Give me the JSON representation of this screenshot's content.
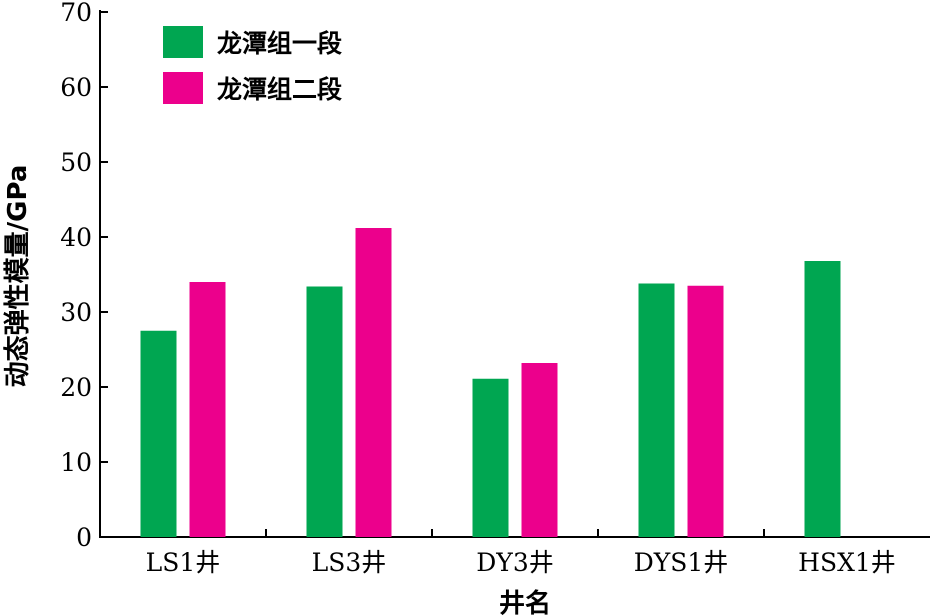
{
  "chart_data": {
    "type": "bar",
    "categories": [
      "LS1井",
      "LS3井",
      "DY3井",
      "DYS1井",
      "HSX1井"
    ],
    "series": [
      {
        "name": "龙潭组一段",
        "color": "#00a651",
        "values": [
          27.5,
          33.4,
          21.1,
          33.8,
          36.8
        ]
      },
      {
        "name": "龙潭组二段",
        "color": "#ec008c",
        "values": [
          34.0,
          41.2,
          23.2,
          33.5,
          null
        ]
      }
    ],
    "xlabel": "井名",
    "ylabel": "动态弹性模量/GPa",
    "ylim": [
      0,
      70
    ],
    "yticks": [
      0,
      10,
      20,
      30,
      40,
      50,
      60,
      70
    ],
    "grid": false,
    "legend_position": "top-left"
  }
}
